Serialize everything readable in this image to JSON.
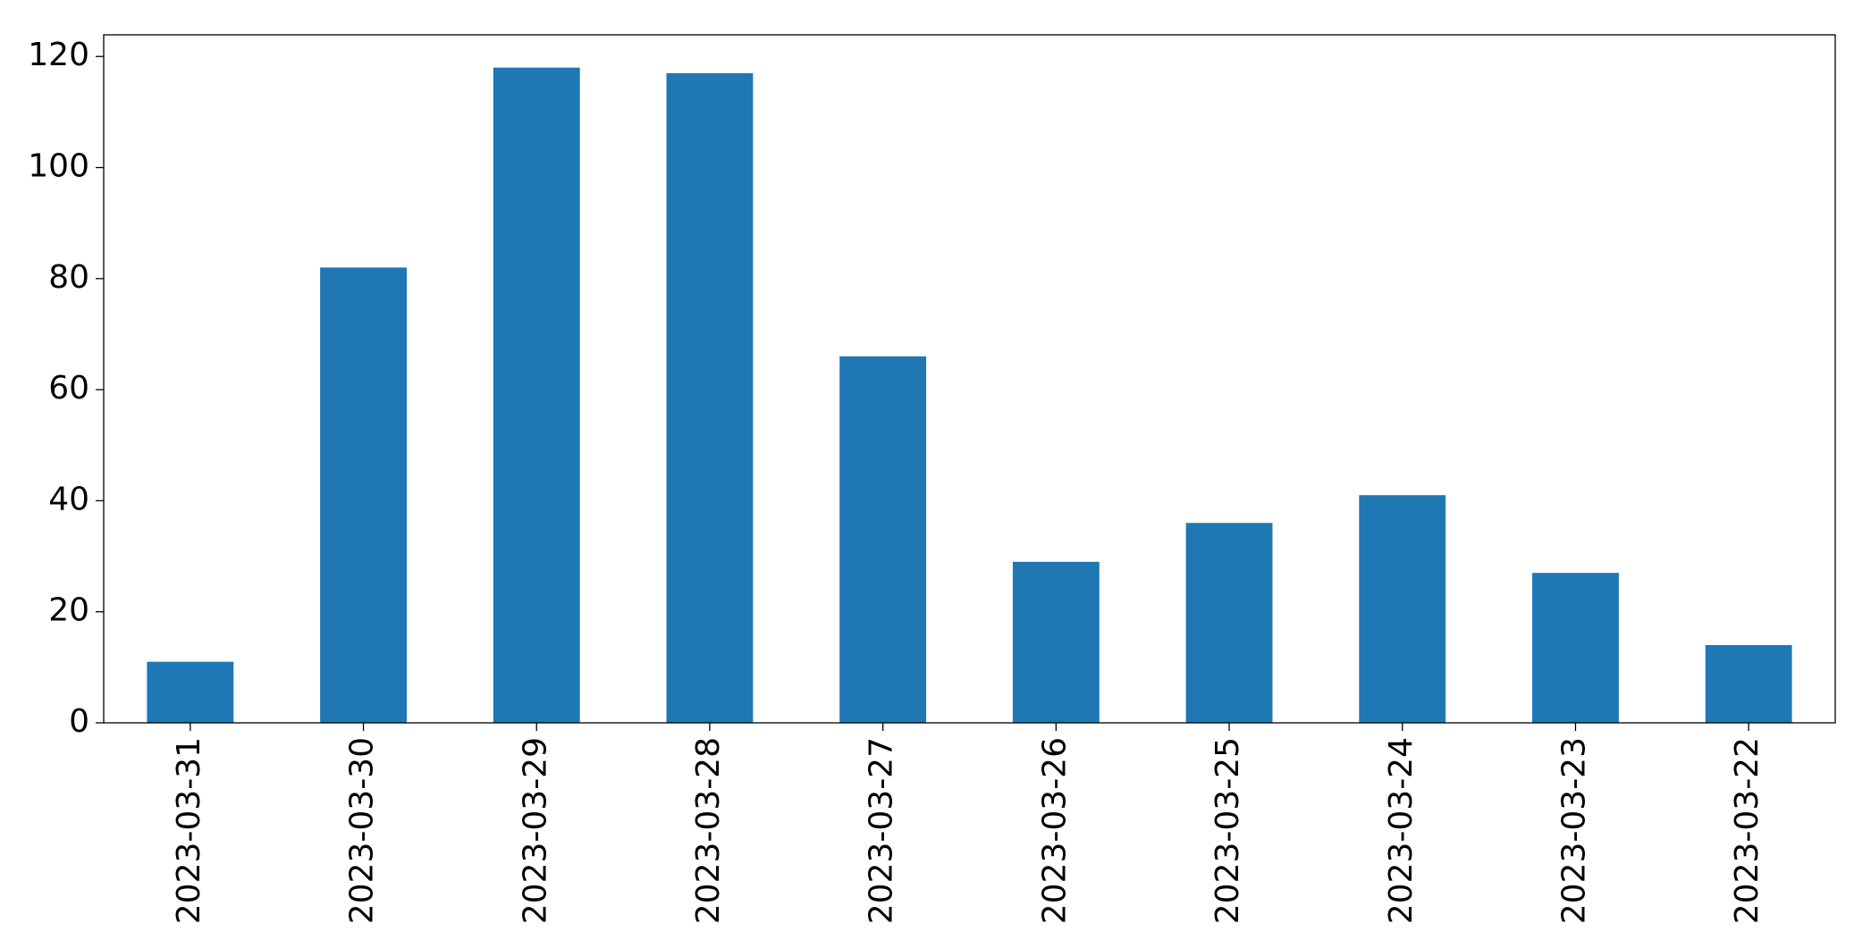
{
  "chart_data": {
    "type": "bar",
    "categories": [
      "2023-03-31",
      "2023-03-30",
      "2023-03-29",
      "2023-03-28",
      "2023-03-27",
      "2023-03-26",
      "2023-03-25",
      "2023-03-24",
      "2023-03-23",
      "2023-03-22"
    ],
    "values": [
      11,
      82,
      118,
      117,
      66,
      29,
      36,
      41,
      27,
      14
    ],
    "color": "#1f77b4",
    "ylim": [
      0,
      123.9
    ],
    "yticks": [
      0,
      20,
      40,
      60,
      80,
      100,
      120
    ],
    "grid": false
  }
}
